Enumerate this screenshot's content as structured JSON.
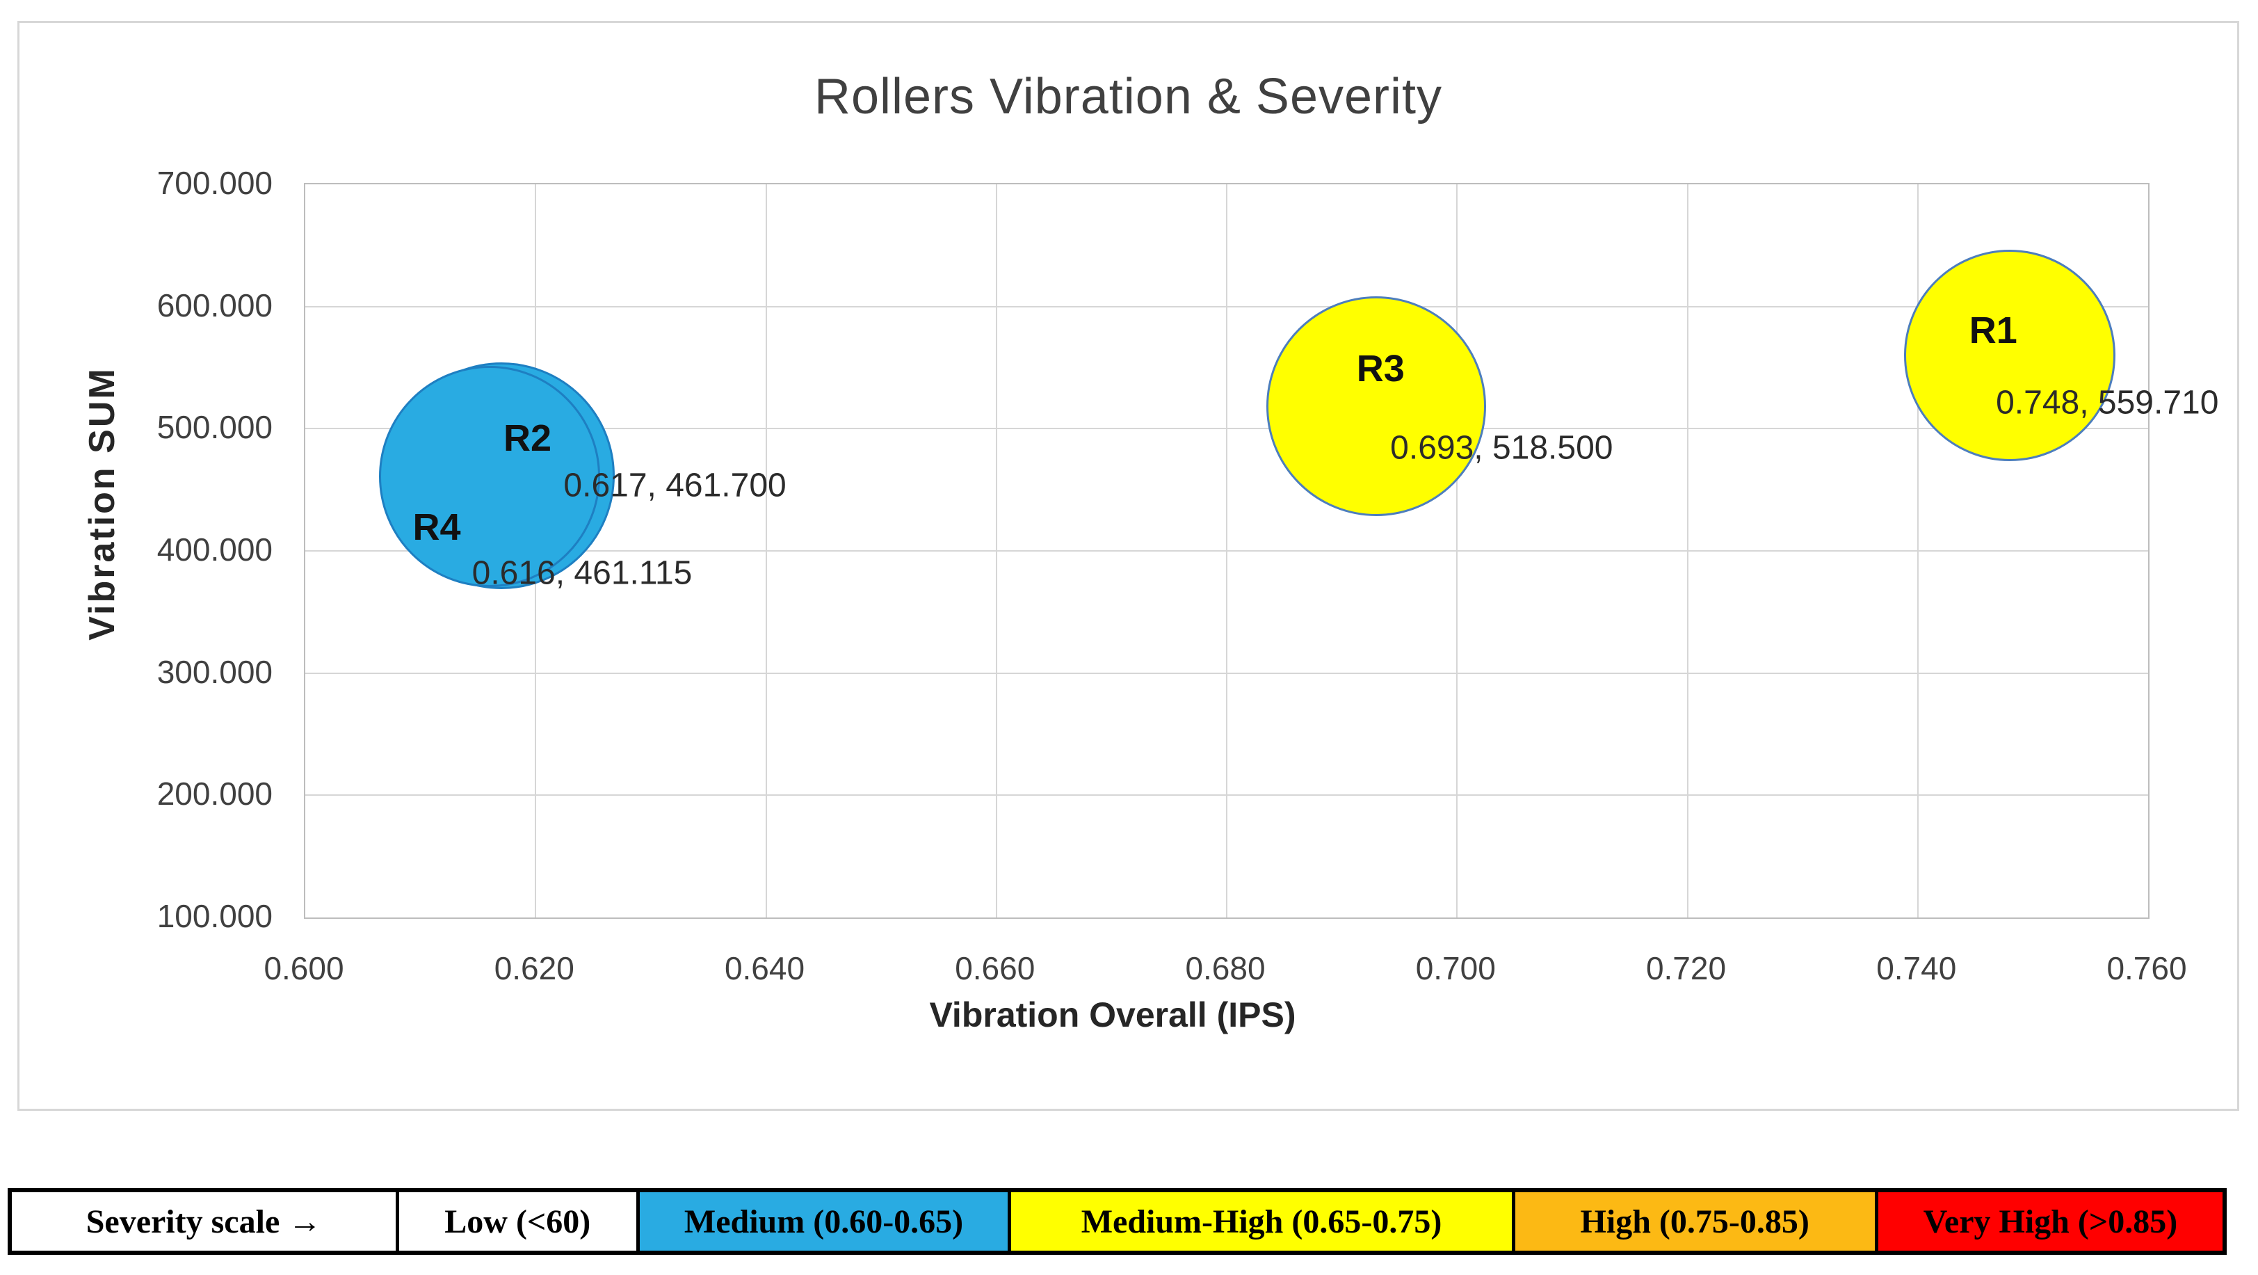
{
  "chart_data": {
    "type": "bubble",
    "title": "Rollers Vibration & Severity",
    "xlabel": "Vibration Overall (IPS)",
    "ylabel": "Vibration SUM",
    "xlim": [
      0.6,
      0.76
    ],
    "ylim": [
      100,
      700
    ],
    "x_ticks": [
      "0.600",
      "0.620",
      "0.640",
      "0.660",
      "0.680",
      "0.700",
      "0.720",
      "0.740",
      "0.760"
    ],
    "y_ticks": [
      "700.000",
      "600.000",
      "500.000",
      "400.000",
      "300.000",
      "200.000",
      "100.000"
    ],
    "grid": true,
    "legend_position": "none",
    "points": [
      {
        "name": "R2",
        "x": 0.617,
        "y": 461.7,
        "value_label": "0.617, 461.700",
        "fill": "#29ABE2",
        "stroke": "#1E7FC2",
        "radius_px": 163,
        "name_offset": [
          38,
          -54
        ],
        "value_offset": [
          250,
          14
        ]
      },
      {
        "name": "R4",
        "x": 0.616,
        "y": 461.115,
        "value_label": "0.616, 461.115",
        "fill": "#29ABE2",
        "stroke": "#1E7FC2",
        "radius_px": 159,
        "name_offset": [
          -76,
          73
        ],
        "value_offset": [
          133,
          139
        ]
      },
      {
        "name": "R3",
        "x": 0.693,
        "y": 518.5,
        "value_label": "0.693, 518.500",
        "fill": "#FFFF00",
        "stroke": "#4D7EBD",
        "radius_px": 158,
        "name_offset": [
          6,
          -54
        ],
        "value_offset": [
          180,
          60
        ]
      },
      {
        "name": "R1",
        "x": 0.748,
        "y": 559.71,
        "value_label": "0.748, 559.710",
        "fill": "#FFFF00",
        "stroke": "#4D7EBD",
        "radius_px": 152,
        "name_offset": [
          -24,
          -36
        ],
        "value_offset": [
          140,
          68
        ]
      }
    ]
  },
  "severity_scale": {
    "cells": [
      {
        "label": "Severity scale →",
        "bg": "#FFFFFF",
        "color": "#000000"
      },
      {
        "label": "Low (<60)",
        "bg": "#FFFFFF",
        "color": "#000000"
      },
      {
        "label": "Medium (0.60-0.65)",
        "bg": "#29ABE2",
        "color": "#000000"
      },
      {
        "label": "Medium-High (0.65-0.75)",
        "bg": "#FFFF00",
        "color": "#000000"
      },
      {
        "label": "High (0.75-0.85)",
        "bg": "#FCB914",
        "color": "#000000"
      },
      {
        "label": "Very High (>0.85)",
        "bg": "#FF0000",
        "color": "#000000"
      }
    ]
  }
}
